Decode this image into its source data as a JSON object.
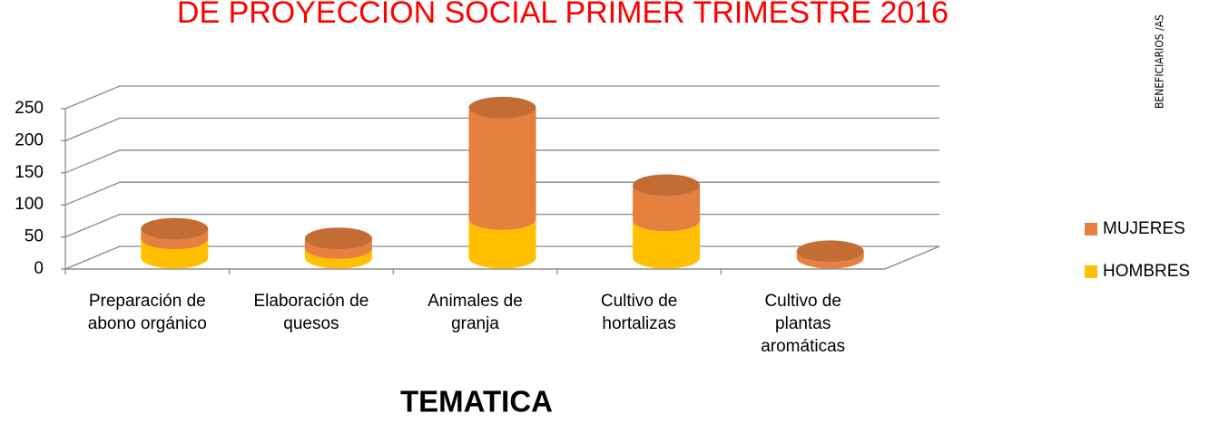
{
  "chart_data": {
    "type": "bar3d_stacked",
    "title": "DE PROYECCION SOCIAL PRIMER TRIMESTRE 2016",
    "y_axis_label": "BENEFICIARIOS /AS",
    "x_axis_label": "TEMATICA",
    "categories": [
      "Preparación de abono orgánico",
      "Elaboración de quesos",
      "Animales de granja",
      "Cultivo de hortalizas",
      "Cultivo de plantas aromáticas"
    ],
    "series": [
      {
        "name": "HOMBRES",
        "color": "#ffc000",
        "values": [
          30,
          15,
          60,
          58,
          0
        ]
      },
      {
        "name": "MUJERES",
        "color": "#e5803e",
        "values": [
          15,
          15,
          174,
          55,
          10
        ]
      }
    ],
    "ylim": [
      0,
      250
    ],
    "yticks": [
      0,
      50,
      100,
      150,
      200,
      250
    ],
    "grid": true,
    "legend": "right"
  }
}
